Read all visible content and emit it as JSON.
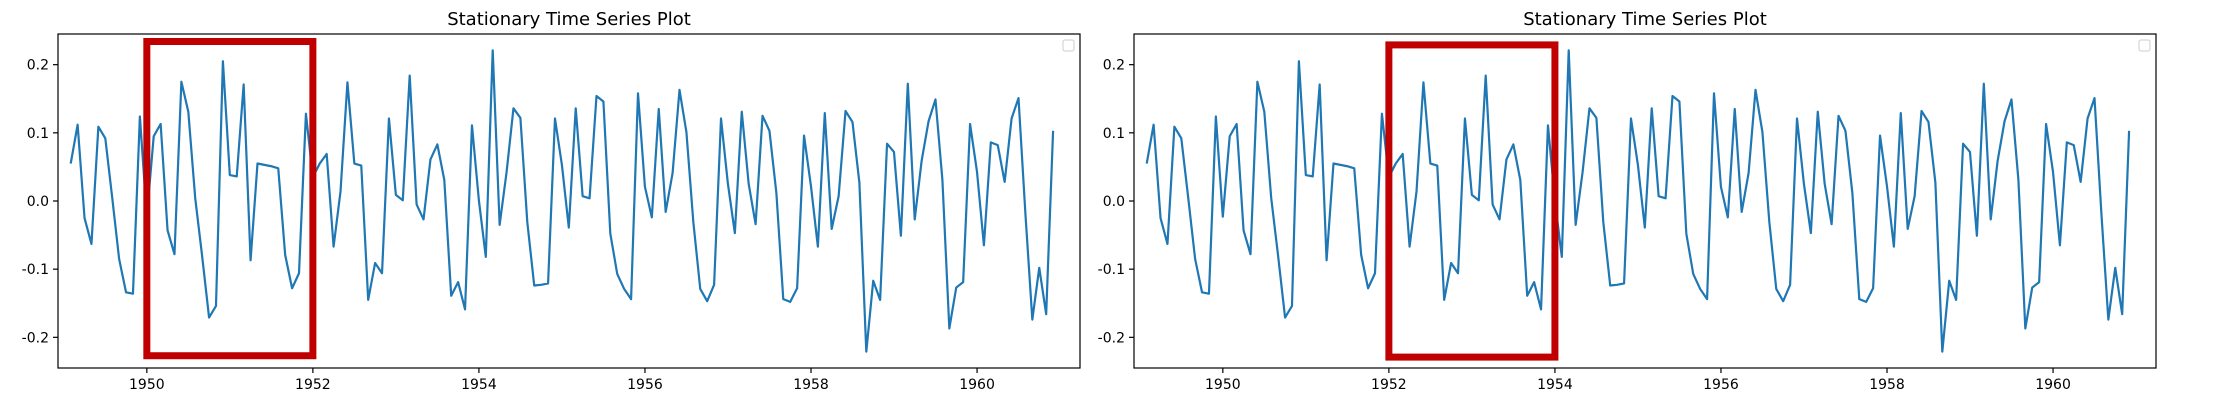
{
  "colors": {
    "series": "#1f77b4",
    "highlight": "#c00000"
  },
  "chart_data": [
    {
      "type": "line",
      "title": "Stationary Time Series Plot",
      "xlabel": "",
      "ylabel": "",
      "xlim": [
        1948.93,
        1961.24
      ],
      "ylim": [
        -0.245,
        0.245
      ],
      "xticks": [
        1950,
        1952,
        1954,
        1956,
        1958,
        1960
      ],
      "yticks": [
        -0.2,
        -0.1,
        0.0,
        0.1,
        0.2
      ],
      "grid": false,
      "legend": "top-right, empty",
      "x_start": 1949.083,
      "x_step": 0.08333,
      "highlight_x": [
        1950.0,
        1952.0
      ],
      "highlight_y": [
        -0.227,
        0.234
      ],
      "series": [
        {
          "values": [
            0.055,
            0.112,
            -0.025,
            -0.063,
            0.109,
            0.092,
            0.005,
            -0.085,
            -0.134,
            -0.136,
            0.124,
            -0.023,
            0.095,
            0.113,
            -0.043,
            -0.078,
            0.175,
            0.131,
            0.004,
            -0.081,
            -0.171,
            -0.154,
            0.205,
            0.038,
            0.036,
            0.171,
            -0.087,
            0.055,
            0.053,
            0.051,
            0.048,
            -0.079,
            -0.128,
            -0.106,
            0.128,
            0.035,
            0.055,
            0.069,
            -0.067,
            0.014,
            0.174,
            0.055,
            0.052,
            -0.145,
            -0.091,
            -0.106,
            0.121,
            0.009,
            0.001,
            0.184,
            -0.005,
            -0.027,
            0.061,
            0.083,
            0.031,
            -0.139,
            -0.119,
            -0.159,
            0.111,
            0.001,
            -0.082,
            0.221,
            -0.035,
            0.042,
            0.136,
            0.122,
            -0.031,
            -0.124,
            -0.123,
            -0.121,
            0.121,
            0.053,
            -0.039,
            0.136,
            0.007,
            0.004,
            0.154,
            0.146,
            -0.048,
            -0.107,
            -0.129,
            -0.144,
            0.158,
            0.021,
            -0.024,
            0.135,
            -0.016,
            0.041,
            0.163,
            0.101,
            -0.031,
            -0.129,
            -0.147,
            -0.123,
            0.121,
            0.025,
            -0.047,
            0.131,
            0.025,
            -0.034,
            0.125,
            0.103,
            0.012,
            -0.144,
            -0.148,
            -0.128,
            0.096,
            0.022,
            -0.067,
            0.129,
            -0.041,
            0.007,
            0.132,
            0.116,
            0.027,
            -0.221,
            -0.117,
            -0.145,
            0.084,
            0.072,
            -0.051,
            0.172,
            -0.027,
            0.059,
            0.117,
            0.149,
            0.031,
            -0.187,
            -0.127,
            -0.119,
            0.113,
            0.043,
            -0.065,
            0.086,
            0.082,
            0.028,
            0.121,
            0.151,
            -0.019,
            -0.174,
            -0.098,
            -0.166,
            0.103
          ]
        }
      ]
    },
    {
      "type": "line",
      "title": "Stationary Time Series Plot",
      "xlabel": "",
      "ylabel": "",
      "xlim": [
        1948.93,
        1961.24
      ],
      "ylim": [
        -0.245,
        0.245
      ],
      "xticks": [
        1950,
        1952,
        1954,
        1956,
        1958,
        1960
      ],
      "yticks": [
        -0.2,
        -0.1,
        0.0,
        0.1,
        0.2
      ],
      "grid": false,
      "legend": "top-right, empty",
      "x_start": 1949.083,
      "x_step": 0.08333,
      "highlight_x": [
        1952.0,
        1954.0
      ],
      "highlight_y": [
        -0.229,
        0.229
      ],
      "series": [
        {
          "values": [
            0.055,
            0.112,
            -0.025,
            -0.063,
            0.109,
            0.092,
            0.005,
            -0.085,
            -0.134,
            -0.136,
            0.124,
            -0.023,
            0.095,
            0.113,
            -0.043,
            -0.078,
            0.175,
            0.131,
            0.004,
            -0.081,
            -0.171,
            -0.154,
            0.205,
            0.038,
            0.036,
            0.171,
            -0.087,
            0.055,
            0.053,
            0.051,
            0.048,
            -0.079,
            -0.128,
            -0.106,
            0.128,
            0.035,
            0.055,
            0.069,
            -0.067,
            0.014,
            0.174,
            0.055,
            0.052,
            -0.145,
            -0.091,
            -0.106,
            0.121,
            0.009,
            0.001,
            0.184,
            -0.005,
            -0.027,
            0.061,
            0.083,
            0.031,
            -0.139,
            -0.119,
            -0.159,
            0.111,
            0.001,
            -0.082,
            0.221,
            -0.035,
            0.042,
            0.136,
            0.122,
            -0.031,
            -0.124,
            -0.123,
            -0.121,
            0.121,
            0.053,
            -0.039,
            0.136,
            0.007,
            0.004,
            0.154,
            0.146,
            -0.048,
            -0.107,
            -0.129,
            -0.144,
            0.158,
            0.021,
            -0.024,
            0.135,
            -0.016,
            0.041,
            0.163,
            0.101,
            -0.031,
            -0.129,
            -0.147,
            -0.123,
            0.121,
            0.025,
            -0.047,
            0.131,
            0.025,
            -0.034,
            0.125,
            0.103,
            0.012,
            -0.144,
            -0.148,
            -0.128,
            0.096,
            0.022,
            -0.067,
            0.129,
            -0.041,
            0.007,
            0.132,
            0.116,
            0.027,
            -0.221,
            -0.117,
            -0.145,
            0.084,
            0.072,
            -0.051,
            0.172,
            -0.027,
            0.059,
            0.117,
            0.149,
            0.031,
            -0.187,
            -0.127,
            -0.119,
            0.113,
            0.043,
            -0.065,
            0.086,
            0.082,
            0.028,
            0.121,
            0.151,
            -0.019,
            -0.174,
            -0.098,
            -0.166,
            0.103
          ]
        }
      ]
    }
  ]
}
